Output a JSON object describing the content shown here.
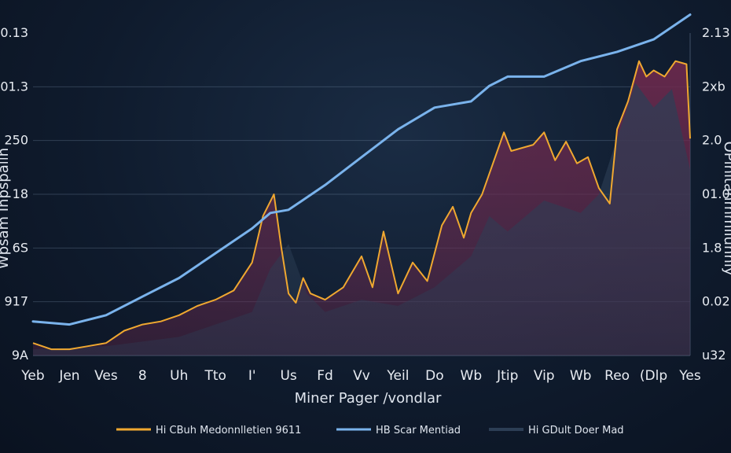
{
  "chart_data": {
    "type": "line",
    "xlabel": "Miner Pager /vondlar",
    "ylabel_left": "Wpsam Ihpspaiih",
    "ylabel_right": "OPlnitahmmliunniy",
    "categories": [
      "Yeb",
      "Jen",
      "Ves",
      "8",
      "Uh",
      "Tto",
      "I'",
      "Us",
      "Fd",
      "Vv",
      "Yeil",
      "Do",
      "Wb",
      "Jtip",
      "Vip",
      "Wb",
      "Reo",
      "(Dlp",
      "Yes"
    ],
    "y_ticks_left": [
      "9A",
      "917",
      "6S",
      "18",
      "250",
      "01.3",
      "0.13"
    ],
    "y_ticks_right": [
      "u32",
      "0.02",
      "1.8",
      "01.0",
      "2.0",
      "2xb",
      "2.13"
    ],
    "ylim": [
      0,
      100
    ],
    "legend_position": "bottom",
    "series": [
      {
        "name": "Hi CBuh Medonnlletien 9611",
        "kind": "area",
        "color": "#f0a830",
        "fill": "#6e2a4e",
        "x": [
          0.0,
          0.5,
          1.0,
          1.5,
          2.0,
          2.5,
          3.0,
          3.5,
          4.0,
          4.5,
          5.0,
          5.5,
          6.0,
          6.3,
          6.6,
          6.8,
          7.0,
          7.2,
          7.4,
          7.6,
          8.0,
          8.5,
          9.0,
          9.3,
          9.6,
          10.0,
          10.4,
          10.8,
          11.2,
          11.5,
          11.8,
          12.0,
          12.3,
          12.6,
          12.9,
          13.1,
          13.4,
          13.7,
          14.0,
          14.3,
          14.6,
          14.9,
          15.2,
          15.5,
          15.8,
          16.0,
          16.3,
          16.6,
          16.8,
          17.0,
          17.3,
          17.6,
          17.9,
          18.0
        ],
        "values": [
          4,
          2,
          2,
          3,
          4,
          8,
          10,
          11,
          13,
          16,
          18,
          21,
          30,
          45,
          52,
          35,
          20,
          17,
          25,
          20,
          18,
          22,
          32,
          22,
          40,
          20,
          30,
          24,
          42,
          48,
          38,
          46,
          52,
          62,
          72,
          66,
          67,
          68,
          72,
          63,
          69,
          62,
          64,
          54,
          49,
          73,
          82,
          95,
          90,
          92,
          90,
          95,
          94,
          70
        ]
      },
      {
        "name": "HB Scar Mentiad",
        "kind": "line",
        "color": "#7ab3ec",
        "x": [
          0,
          1,
          2,
          3,
          4,
          5,
          6,
          6.5,
          7,
          8,
          9,
          10,
          11,
          12,
          12.5,
          13,
          14,
          15,
          16,
          17,
          18
        ],
        "values": [
          11,
          10,
          13,
          19,
          25,
          33,
          41,
          46,
          47,
          55,
          64,
          73,
          80,
          82,
          87,
          90,
          90,
          95,
          98,
          102,
          110
        ]
      },
      {
        "name": "Hi GDult Doer Mad",
        "kind": "area",
        "color": "#2c3e55",
        "fill": "#2c3e55",
        "x": [
          0,
          2,
          4,
          6,
          6.5,
          7,
          7.5,
          8,
          9,
          10,
          11,
          12,
          12.5,
          13,
          14,
          15,
          15.5,
          16,
          16.5,
          17,
          17.5,
          18
        ],
        "values": [
          2,
          3,
          6,
          14,
          28,
          36,
          20,
          14,
          18,
          16,
          22,
          32,
          45,
          40,
          50,
          46,
          52,
          70,
          88,
          80,
          86,
          60
        ]
      }
    ]
  }
}
